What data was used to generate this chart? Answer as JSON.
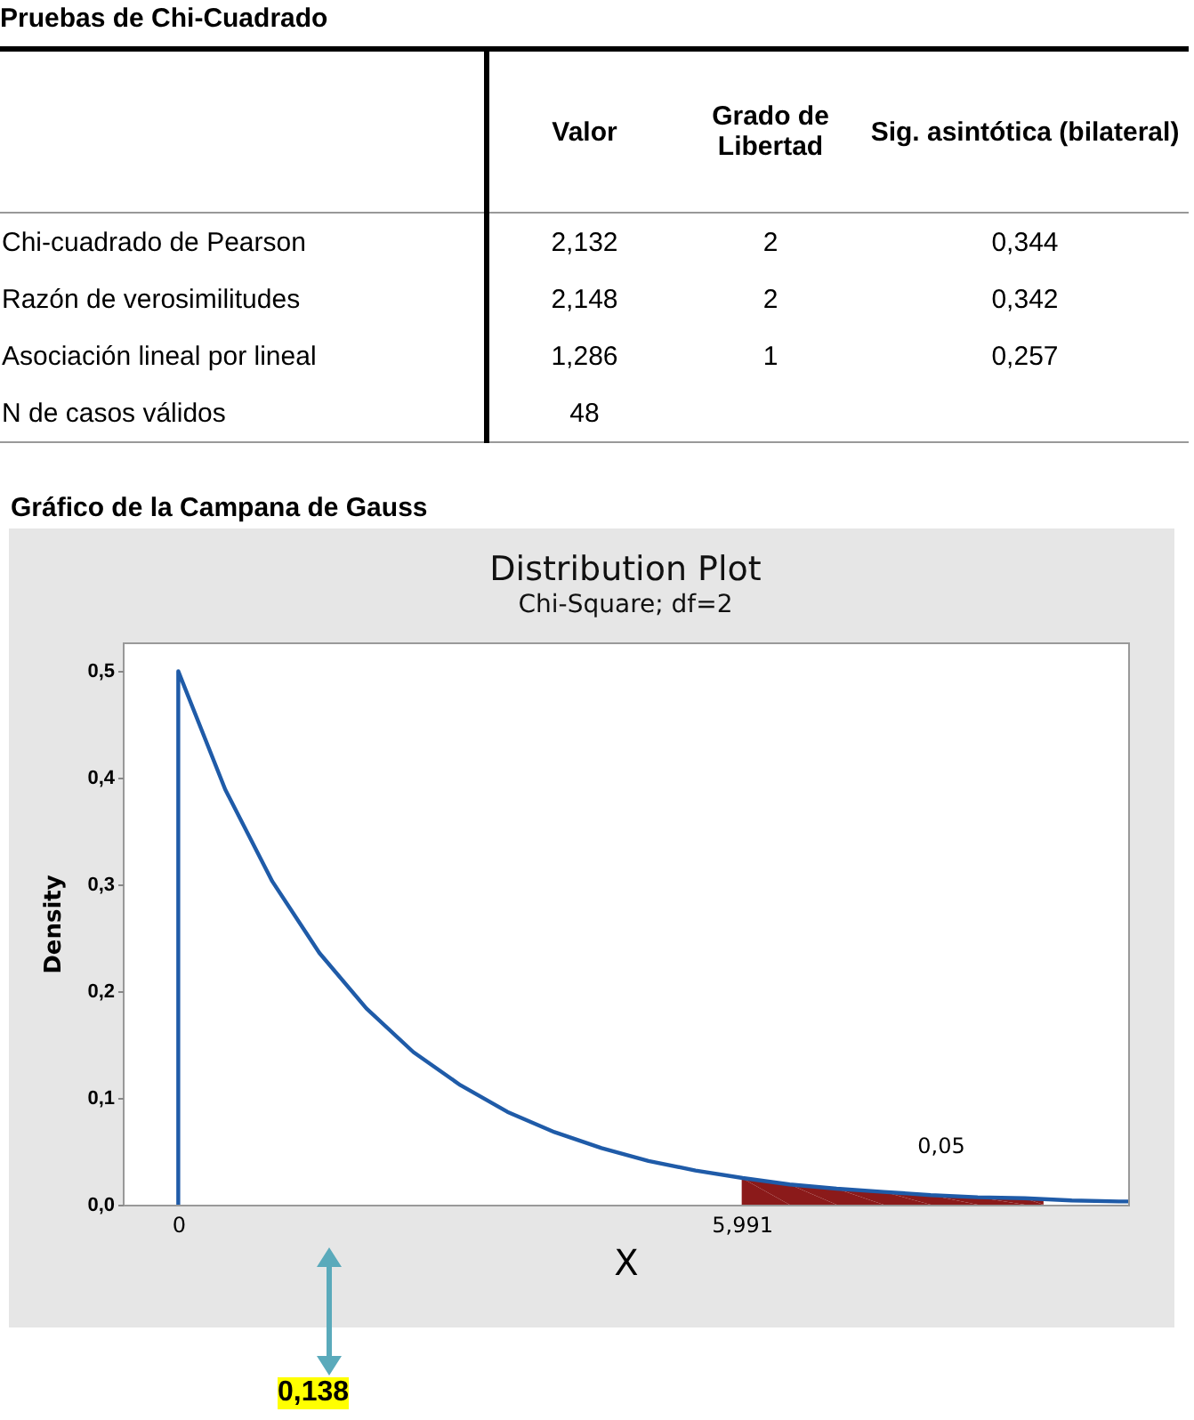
{
  "chart_data": [
    {
      "type": "other",
      "title": "Pruebas de Chi-Cuadrado",
      "categories": [
        null,
        "Valor",
        "Grado de Libertad",
        "Sig. asintótica (bilateral)"
      ],
      "y_categories": [
        "Chi-cuadrado de Pearson",
        "Razón de verosimilitudes",
        "Asociación lineal por lineal",
        "N de casos válidos"
      ],
      "cell_labels": [
        [
          "2,132",
          "2",
          "0,344"
        ],
        [
          "2,148",
          "2",
          "0,342"
        ],
        [
          "1,286",
          "1",
          "0,257"
        ],
        [
          "48",
          null,
          null
        ]
      ]
    },
    {
      "type": "line",
      "title": "Distribution Plot",
      "subtitle": "Chi-Square; df=2",
      "xlabel": "X",
      "ylabel": "Density",
      "xlim": [
        -0.59,
        10.1
      ],
      "ylim": [
        0,
        0.527
      ],
      "xticks": [
        {
          "value": 0,
          "label": "0"
        },
        {
          "value": 5.991,
          "label": "5,991"
        }
      ],
      "yticks": [
        {
          "value": 0,
          "label": "0,0"
        },
        {
          "value": 0.1,
          "label": "0,1"
        },
        {
          "value": 0.2,
          "label": "0,2"
        },
        {
          "value": 0.3,
          "label": "0,3"
        },
        {
          "value": 0.4,
          "label": "0,4"
        },
        {
          "value": 0.5,
          "label": "0,5"
        }
      ],
      "grid": false,
      "series": [
        {
          "type": "area",
          "color": "#8b1a1a",
          "x": [
            5.991,
            6.5,
            7,
            7.5,
            8,
            8.5,
            9,
            9.2
          ],
          "values": [
            0.025,
            0.019,
            0.015,
            0.012,
            0.009,
            0.007,
            0.006,
            0.005
          ]
        },
        {
          "type": "line",
          "color": "#1f5ba8",
          "x": [
            0,
            0,
            0.5,
            1,
            1.5,
            2,
            2.5,
            3,
            3.5,
            4,
            4.5,
            5,
            5.5,
            6,
            6.5,
            7,
            7.5,
            8,
            8.5,
            9,
            9.5,
            10,
            10.1
          ],
          "values": [
            0,
            0.5,
            0.389,
            0.303,
            0.236,
            0.184,
            0.143,
            0.112,
            0.087,
            0.068,
            0.053,
            0.041,
            0.032,
            0.025,
            0.019,
            0.015,
            0.012,
            0.009,
            0.007,
            0.006,
            0.004,
            0.003,
            0.003
          ]
        }
      ],
      "annotations": [
        "0,05",
        "Gráfico de la Campana de Gauss",
        "0,138"
      ]
    }
  ]
}
